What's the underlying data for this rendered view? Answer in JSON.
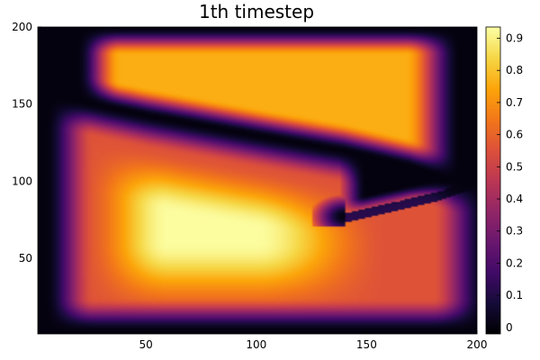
{
  "chart_data": {
    "type": "heatmap",
    "title": "1th timestep",
    "xlabel": "",
    "ylabel": "",
    "xlim": [
      1,
      200
    ],
    "ylim": [
      1,
      200
    ],
    "x_ticks": [
      "50",
      "100",
      "150",
      "200"
    ],
    "y_ticks": [
      "50",
      "100",
      "150",
      "200"
    ],
    "colormap": "inferno",
    "clim": [
      -0.02,
      0.935
    ],
    "colorbar_ticks": [
      "0",
      "0.1",
      "0.2",
      "0.3",
      "0.4",
      "0.5",
      "0.6",
      "0.7",
      "0.8",
      "0.9"
    ],
    "colorbar_tick_values": [
      0,
      0.1,
      0.2,
      0.3,
      0.4,
      0.5,
      0.6,
      0.7,
      0.8,
      0.9
    ],
    "grid": false,
    "legend": "colorbar-right",
    "field": {
      "description_regions": [
        {
          "name": "upper-band",
          "x_range": [
            30,
            195
          ],
          "y_range": [
            110,
            200
          ],
          "peak": 0.75
        },
        {
          "name": "lower-block",
          "x_range": [
            15,
            200
          ],
          "y_range": [
            10,
            135
          ],
          "peak": 0.9
        }
      ],
      "zero_curve_upper": [
        [
          10,
          155
        ],
        [
          50,
          143
        ],
        [
          100,
          130
        ],
        [
          140,
          120
        ],
        [
          170,
          110
        ],
        [
          190,
          100
        ]
      ],
      "zero_curve_lower": [
        [
          140,
          76
        ],
        [
          165,
          84
        ],
        [
          185,
          91
        ],
        [
          200,
          99
        ]
      ],
      "lower_notch": {
        "x_range": [
          140,
          200
        ],
        "y_range": [
          76,
          100
        ]
      }
    }
  }
}
